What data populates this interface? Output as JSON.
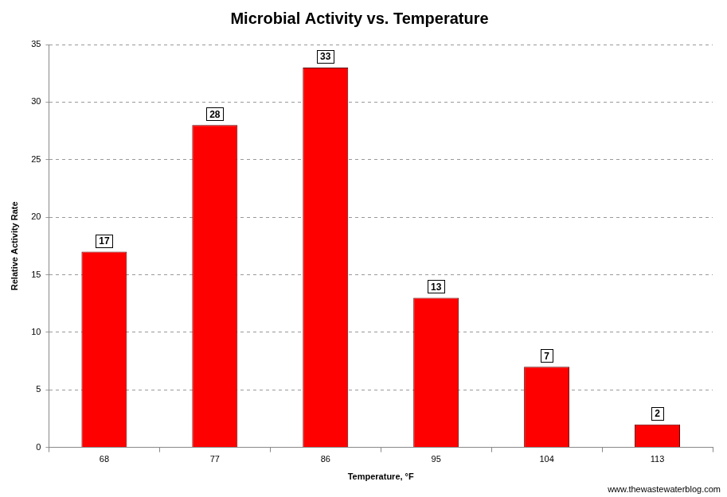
{
  "chart_data": {
    "type": "bar",
    "title": "Microbial Activity vs. Temperature",
    "x_label": "Temperature, °F",
    "y_label": "Relative Activity Rate",
    "categories": [
      "68",
      "77",
      "86",
      "95",
      "104",
      "113"
    ],
    "values": [
      17,
      28,
      33,
      13,
      7,
      2
    ],
    "color": "#ff0000",
    "ylim": [
      0,
      35
    ],
    "yticks": [
      0,
      5,
      10,
      15,
      20,
      25,
      30,
      35
    ],
    "grid": true,
    "data_labels": true,
    "annotations": [
      "www.thewastewaterblog.com"
    ]
  }
}
